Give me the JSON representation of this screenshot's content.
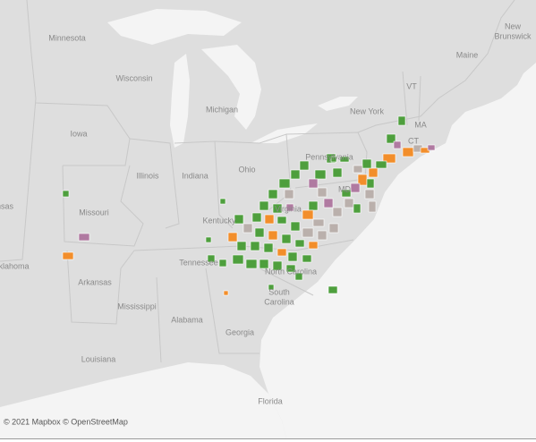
{
  "labels": [
    "Minnesota",
    "Wisconsin",
    "Michigan",
    "New York",
    "VT",
    "MA",
    "CT",
    "Maine",
    "New",
    "Brunswick",
    "Iowa",
    "Illinois",
    "Indiana",
    "Ohio",
    "Pennsylvania",
    "Missouri",
    "Kentucky",
    "Virginia",
    "MD",
    "Tennessee",
    "Arkansas",
    "Oklahoma",
    "Kansas",
    "Mississippi",
    "Alabama",
    "Georgia",
    "South",
    "Carolina",
    "North Carolina",
    "Louisiana",
    "Florida"
  ],
  "attribution": "© 2021 Mapbox © OpenStreetMap"
}
